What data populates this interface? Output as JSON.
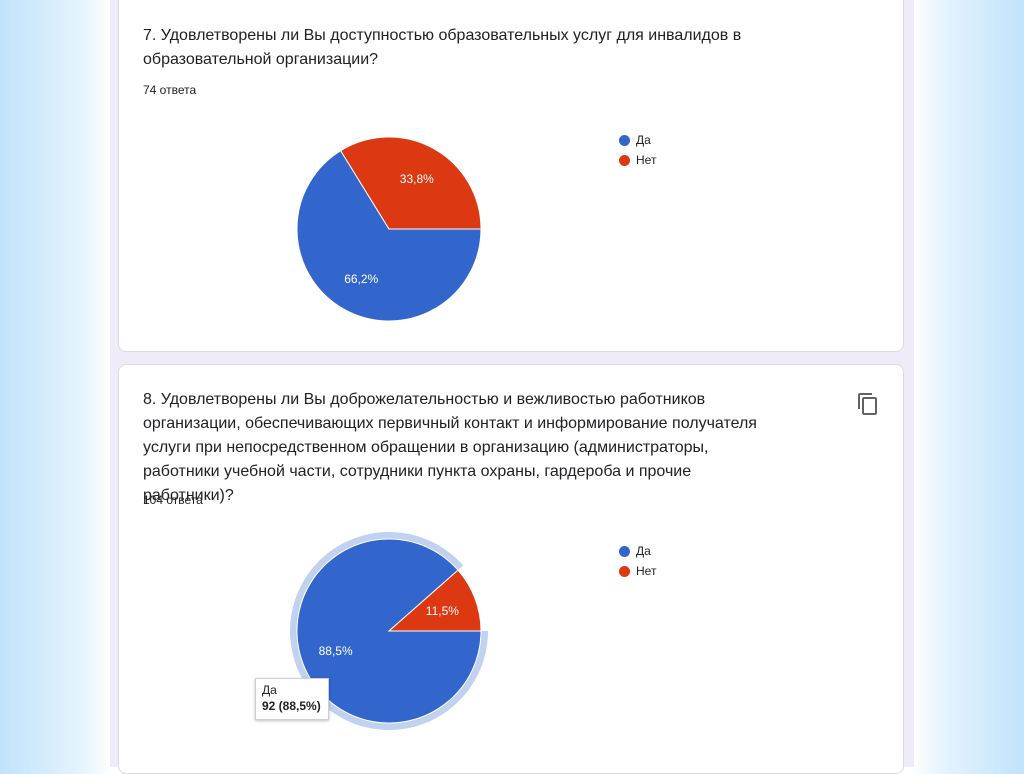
{
  "questions": [
    {
      "title": "7. Удовлетворены ли Вы доступностью образовательных услуг для инвалидов в образовательной организации?",
      "responses": "74 ответа"
    },
    {
      "title": "8. Удовлетворены ли Вы доброжелательностью и вежливостью работников организации, обеспечивающих первичный контакт и информирование получателя услуги при непосредственном обращении в организацию (администраторы, работники учебной части, сотрудники пункта охраны, гардероба и прочие работники)?",
      "responses": "104 ответа",
      "tooltip": {
        "label": "Да",
        "value": "92 (88,5%)"
      }
    }
  ],
  "chart_data": [
    {
      "type": "pie",
      "categories": [
        "Да",
        "Нет"
      ],
      "values": [
        66.2,
        33.8
      ],
      "labels": [
        "66,2%",
        "33,8%"
      ],
      "colors": [
        "#3366cc",
        "#dc3912"
      ],
      "legend": "right"
    },
    {
      "type": "pie",
      "categories": [
        "Да",
        "Нет"
      ],
      "values": [
        88.5,
        11.5
      ],
      "labels": [
        "88,5%",
        "11,5%"
      ],
      "colors": [
        "#3366cc",
        "#dc3912"
      ],
      "legend": "right",
      "highlighted": "Да"
    }
  ],
  "icons": {
    "copy": "copy-icon"
  }
}
